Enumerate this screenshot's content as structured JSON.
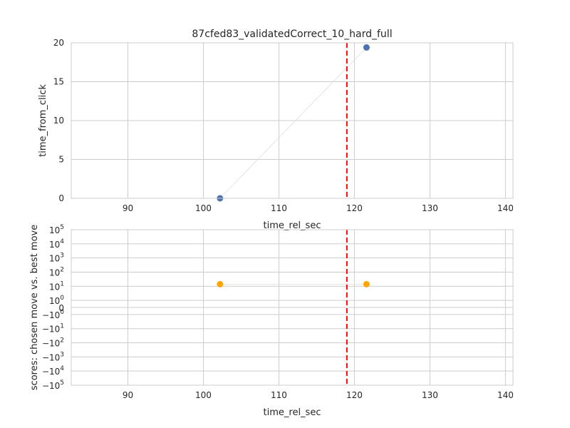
{
  "chart_data": [
    {
      "type": "scatter",
      "title": "87cfed83_validatedCorrect_10_hard_full",
      "xlabel": "time_rel_sec",
      "ylabel": "time_from_click",
      "xlim": [
        82.5,
        141
      ],
      "ylim": [
        0,
        20
      ],
      "x_ticks": [
        90,
        100,
        110,
        120,
        130,
        140
      ],
      "x_tick_labels": [
        "90",
        "100",
        "110",
        "120",
        "130",
        "140"
      ],
      "y_ticks": [
        0,
        5,
        10,
        15,
        20
      ],
      "y_tick_labels": [
        "0",
        "5",
        "10",
        "15",
        "20"
      ],
      "grid": true,
      "series": [
        {
          "name": "time_from_click",
          "x": [
            102.2,
            121.6
          ],
          "y": [
            0,
            19.4
          ],
          "color": "#4c72b0",
          "connect_line_color": "#dddddd"
        }
      ],
      "vline": {
        "x": 119.0,
        "color": "#ff0000",
        "style": "dashed"
      }
    },
    {
      "type": "scatter",
      "xlabel": "time_rel_sec",
      "ylabel": "scores: chosen move vs. best move",
      "yscale": "symlog",
      "xlim": [
        82.5,
        141
      ],
      "x_ticks": [
        90,
        100,
        110,
        120,
        130,
        140
      ],
      "x_tick_labels": [
        "90",
        "100",
        "110",
        "120",
        "130",
        "140"
      ],
      "y_ticks": [
        5,
        4,
        3,
        2,
        1,
        0,
        "0",
        0,
        -1,
        -2,
        -3,
        -4,
        -5
      ],
      "y_tick_labels": [
        {
          "base": "10",
          "exp": "5"
        },
        {
          "base": "10",
          "exp": "4"
        },
        {
          "base": "10",
          "exp": "3"
        },
        {
          "base": "10",
          "exp": "2"
        },
        {
          "base": "10",
          "exp": "1"
        },
        {
          "base": "10",
          "exp": "0"
        },
        {
          "base": "0",
          "exp": ""
        },
        {
          "base": "−10",
          "exp": "0"
        },
        {
          "base": "−10",
          "exp": "1"
        },
        {
          "base": "−10",
          "exp": "2"
        },
        {
          "base": "−10",
          "exp": "3"
        },
        {
          "base": "−10",
          "exp": "4"
        },
        {
          "base": "−10",
          "exp": "5"
        }
      ],
      "y_tick_levels": [
        5,
        4,
        3,
        2,
        1,
        0,
        -0.5,
        -1,
        -2,
        -3,
        -4,
        -5,
        -6
      ],
      "grid": true,
      "series": [
        {
          "name": "scores",
          "x": [
            102.2,
            121.6
          ],
          "y": [
            14,
            14
          ],
          "color": "#ffa500",
          "connect_line_color": "#dddddd"
        }
      ],
      "vline": {
        "x": 119.0,
        "color": "#ff0000",
        "style": "dashed"
      }
    }
  ]
}
